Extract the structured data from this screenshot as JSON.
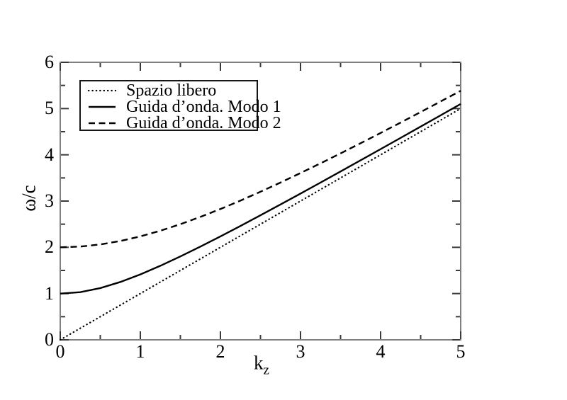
{
  "chart_data": {
    "type": "line",
    "title": "",
    "xlabel": "k_z",
    "xlabel_parts": {
      "base": "k",
      "subscript": "z"
    },
    "ylabel": "ω/c",
    "xlim": [
      0,
      5
    ],
    "ylim": [
      0,
      6
    ],
    "x_major_ticks": [
      0,
      1,
      2,
      3,
      4,
      5
    ],
    "x_minor_ticks": [
      0.5,
      1.5,
      2.5,
      3.5,
      4.5
    ],
    "y_major_ticks": [
      0,
      1,
      2,
      3,
      4,
      5,
      6
    ],
    "y_minor_ticks": [
      0.5,
      1.5,
      2.5,
      3.5,
      4.5,
      5.5
    ],
    "x_tick_labels": [
      "0",
      "1",
      "2",
      "3",
      "4",
      "5"
    ],
    "y_tick_labels": [
      "0",
      "1",
      "2",
      "3",
      "4",
      "5",
      "6"
    ],
    "grid": false,
    "legend_position": "top-left",
    "x": [
      0,
      0.25,
      0.5,
      0.75,
      1,
      1.25,
      1.5,
      1.75,
      2,
      2.25,
      2.5,
      2.75,
      3,
      3.25,
      3.5,
      3.75,
      4,
      4.25,
      4.5,
      4.75,
      5
    ],
    "series": [
      {
        "name": "Spazio libero",
        "style": "dotted",
        "color": "#000000",
        "values": [
          0,
          0.25,
          0.5,
          0.75,
          1,
          1.25,
          1.5,
          1.75,
          2,
          2.25,
          2.5,
          2.75,
          3,
          3.25,
          3.5,
          3.75,
          4,
          4.25,
          4.5,
          4.75,
          5
        ]
      },
      {
        "name": "Guida d’onda. Modo 1",
        "style": "solid",
        "color": "#000000",
        "values": [
          1.0,
          1.031,
          1.118,
          1.25,
          1.414,
          1.601,
          1.803,
          2.016,
          2.236,
          2.462,
          2.693,
          2.926,
          3.162,
          3.4,
          3.64,
          3.881,
          4.123,
          4.366,
          4.61,
          4.854,
          5.099
        ]
      },
      {
        "name": "Guida d’onda. Modo 2",
        "style": "dashed",
        "color": "#000000",
        "values": [
          2.0,
          2.016,
          2.062,
          2.136,
          2.236,
          2.358,
          2.5,
          2.658,
          2.828,
          3.01,
          3.202,
          3.4,
          3.606,
          3.816,
          4.031,
          4.25,
          4.472,
          4.697,
          4.924,
          5.154,
          5.385
        ]
      }
    ]
  },
  "colors": {
    "background": "#ffffff",
    "frame": "#7f7f7f",
    "tick": "#3a3a3a",
    "text": "#000000",
    "curve": "#000000",
    "legend_border": "#161616"
  }
}
